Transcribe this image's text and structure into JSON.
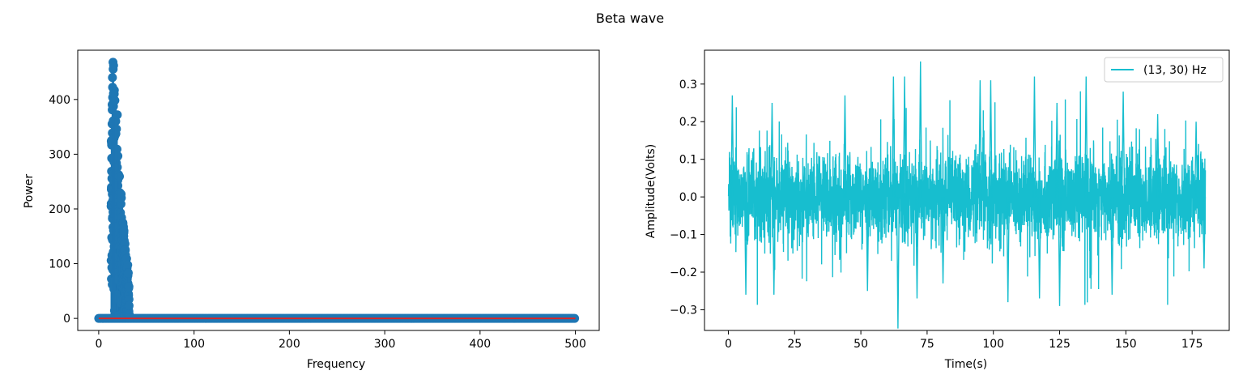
{
  "figure": {
    "title": "Beta wave"
  },
  "chart_data": [
    {
      "type": "scatter",
      "subtype": "stem",
      "title": "",
      "xlabel": "Frequency",
      "ylabel": "Power",
      "xlim": [
        -22,
        525
      ],
      "ylim": [
        -22,
        490
      ],
      "xticks": [
        0,
        100,
        200,
        300,
        400,
        500
      ],
      "yticks": [
        0,
        100,
        200,
        300,
        400
      ],
      "marker_color": "#1f77b4",
      "baseline_color": "#d62728",
      "grid": false,
      "legend": null,
      "series": [
        {
          "description_x_range": [
            0,
            500
          ],
          "peak": {
            "x": 15,
            "y": 468
          },
          "band": [
            13,
            30
          ],
          "envelope": [
            {
              "x": 13,
              "y": 300
            },
            {
              "x": 14,
              "y": 440
            },
            {
              "x": 15,
              "y": 468
            },
            {
              "x": 16,
              "y": 460
            },
            {
              "x": 17,
              "y": 410
            },
            {
              "x": 18,
              "y": 370
            },
            {
              "x": 20,
              "y": 300
            },
            {
              "x": 22,
              "y": 262
            },
            {
              "x": 24,
              "y": 220
            },
            {
              "x": 26,
              "y": 170
            },
            {
              "x": 28,
              "y": 135
            },
            {
              "x": 30,
              "y": 110
            },
            {
              "x": 32,
              "y": 60
            }
          ]
        }
      ]
    },
    {
      "type": "line",
      "title": "",
      "xlabel": "Time(s)",
      "ylabel": "Amplitude(Volts)",
      "xlim": [
        -9,
        189
      ],
      "ylim": [
        -0.355,
        0.39
      ],
      "xticks": [
        0,
        25,
        50,
        75,
        100,
        125,
        150,
        175
      ],
      "yticks": [
        -0.3,
        -0.2,
        -0.1,
        0.0,
        0.1,
        0.2,
        0.3
      ],
      "ytick_labels": [
        "−0.3",
        "−0.2",
        "−0.1",
        "0.0",
        "0.1",
        "0.2",
        "0.3"
      ],
      "grid": false,
      "legend": "top-right",
      "series": [
        {
          "name": "(13, 30) Hz",
          "color": "#17becf",
          "x_range": [
            0,
            180
          ],
          "amplitude_range": [
            -0.35,
            0.36
          ],
          "peaks": [
            {
              "x": 72.5,
              "y": 0.36
            },
            {
              "x": 64,
              "y": -0.35
            }
          ]
        }
      ]
    }
  ]
}
